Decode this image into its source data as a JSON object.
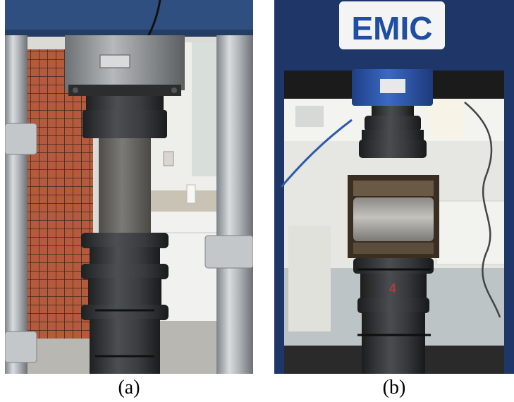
{
  "figure": {
    "panels": [
      {
        "id": "a",
        "caption": "(a)"
      },
      {
        "id": "b",
        "caption": "(b)",
        "machine_logo": "EMIC",
        "specimen_mark": "4"
      }
    ],
    "colors": {
      "frame_blue": "#2e4f7f",
      "steel": "#a9adb2",
      "dark_metal": "#2f3133",
      "concrete": "#6f6e6a",
      "load_cell_blue": "#2c56a8",
      "wall": "#e9e9e6"
    }
  }
}
